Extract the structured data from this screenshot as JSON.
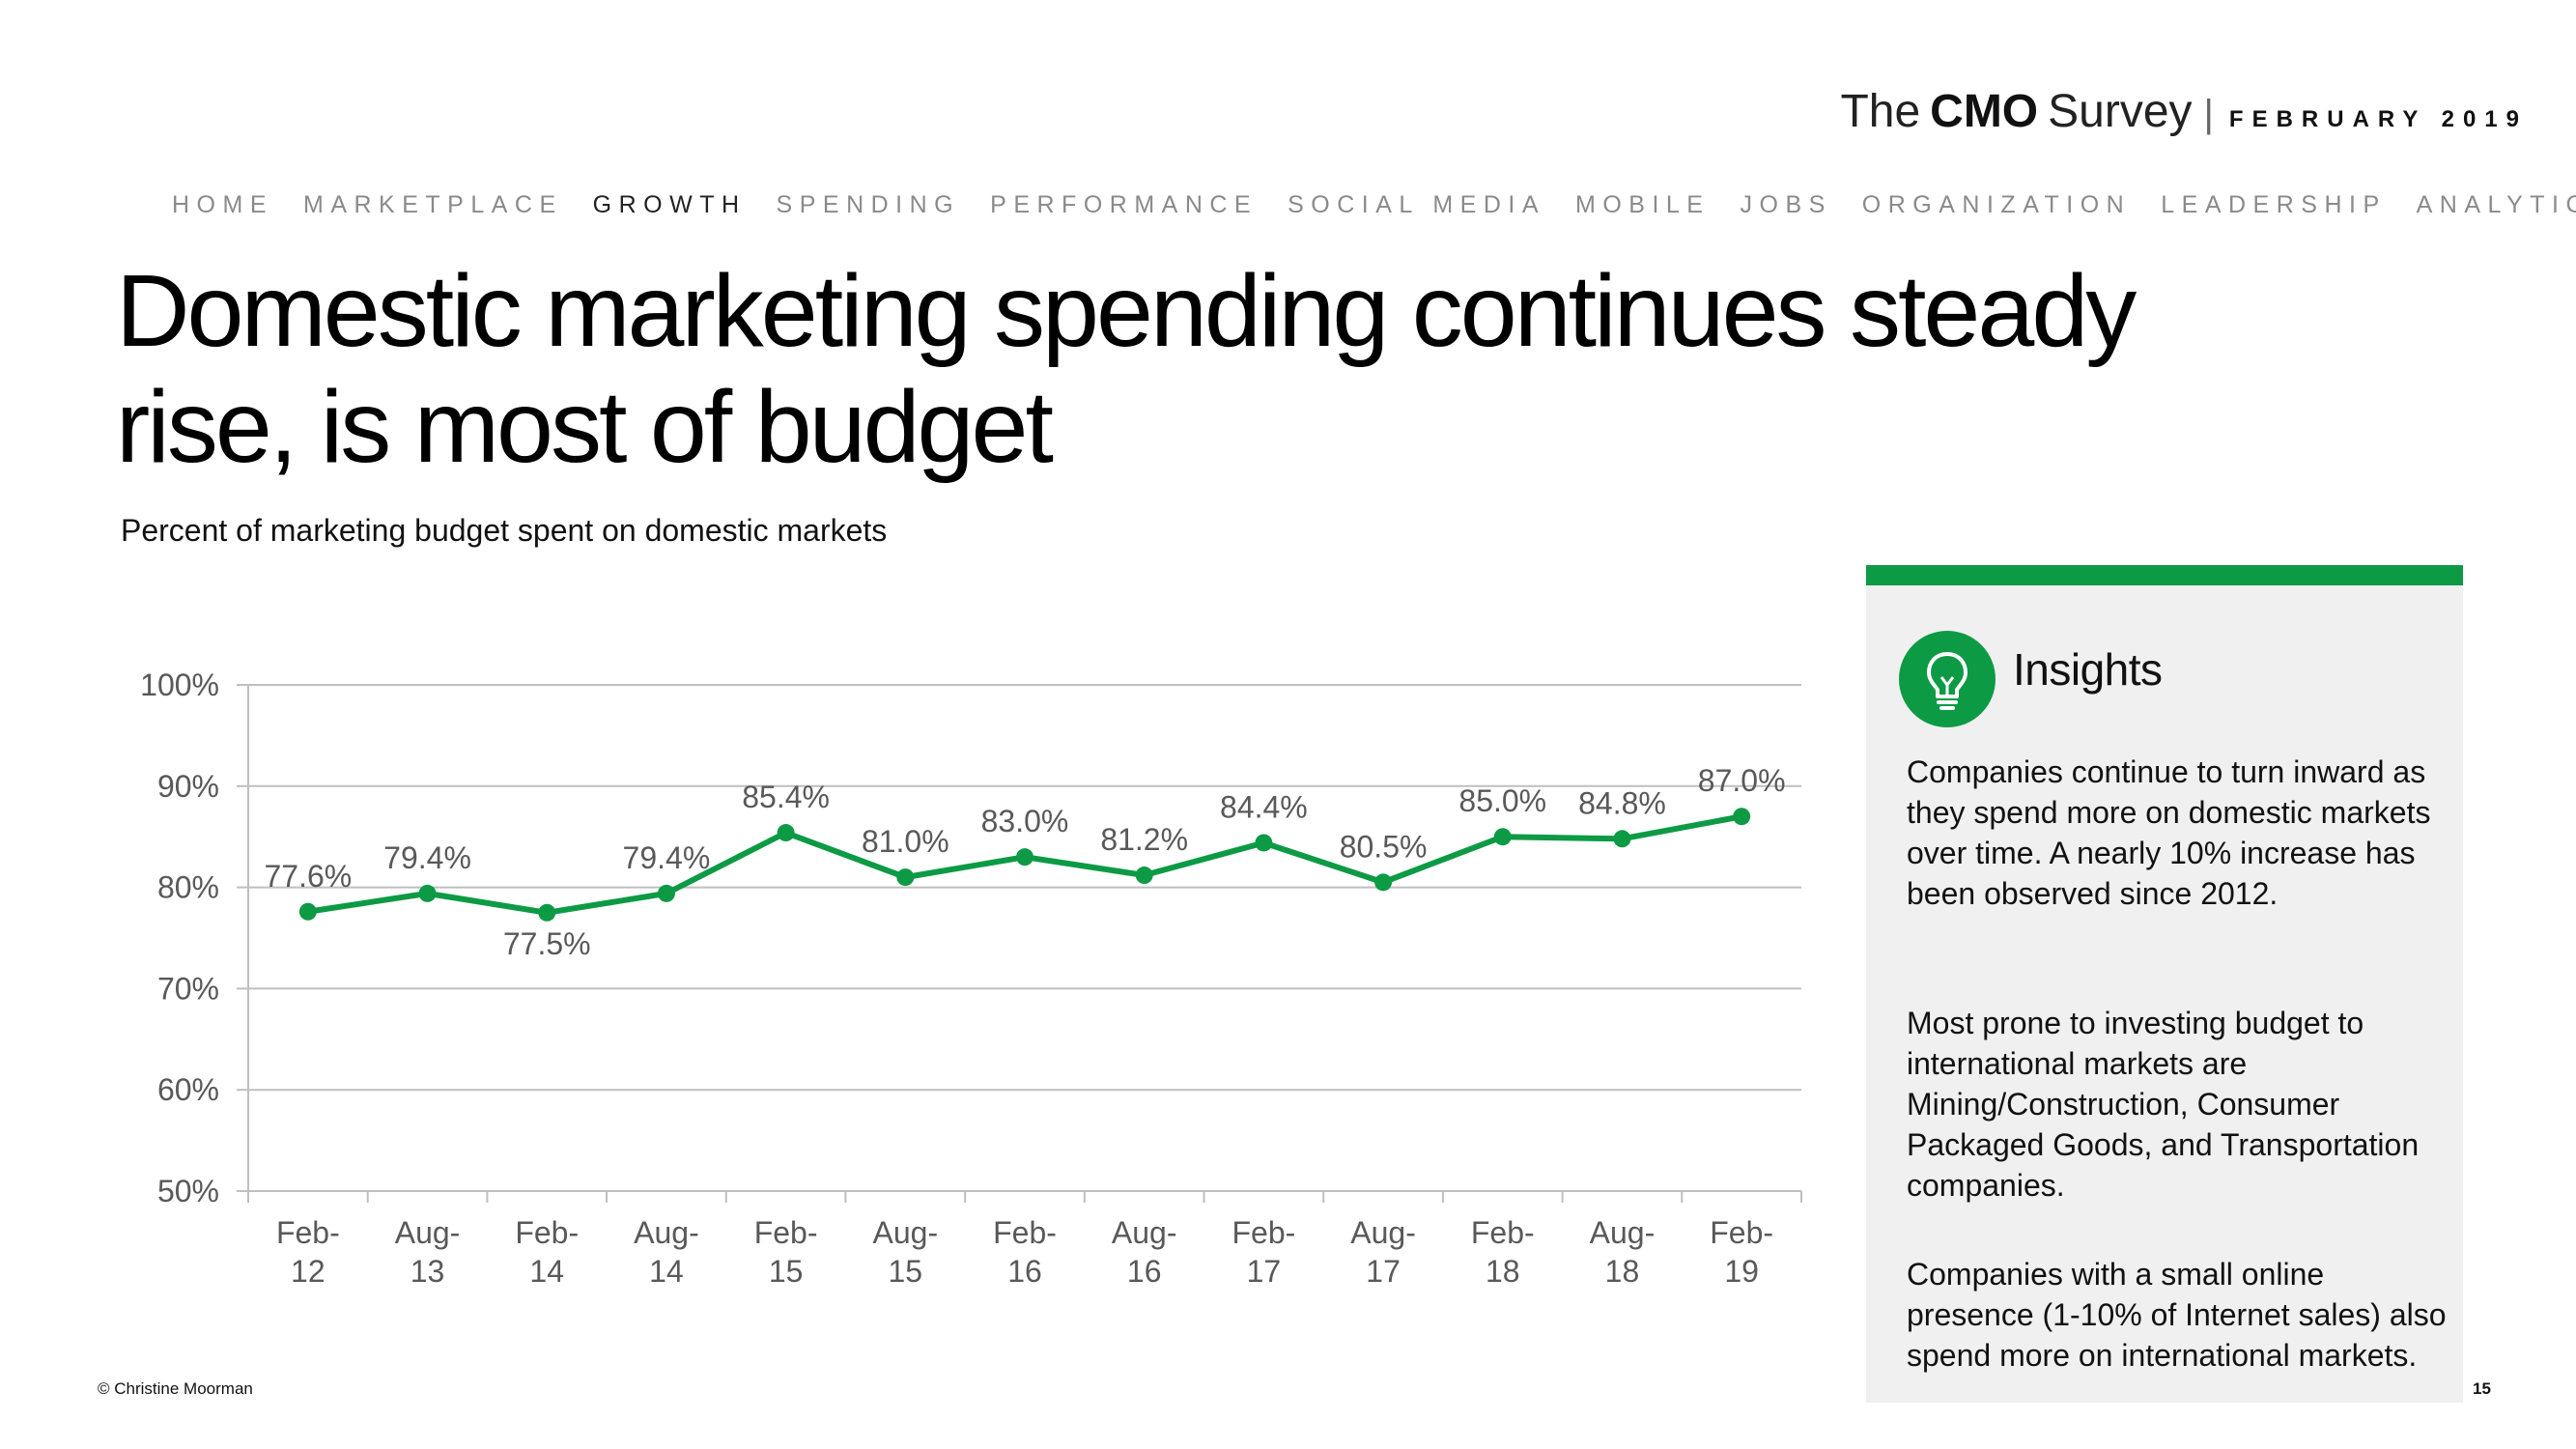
{
  "brand": {
    "the": "The",
    "cmo": "CMO",
    "survey": "Survey",
    "sep": "|",
    "date": "FEBRUARY 2019"
  },
  "nav": {
    "items": [
      "HOME",
      "MARKETPLACE",
      "GROWTH",
      "SPENDING",
      "PERFORMANCE",
      "SOCIAL MEDIA",
      "MOBILE",
      "JOBS",
      "ORGANIZATION",
      "LEADERSHIP",
      "ANALYTICS"
    ],
    "active": "GROWTH"
  },
  "title": "Domestic marketing spending continues steady rise, is most of budget",
  "subtitle": "Percent of marketing budget spent on domestic markets",
  "colors": {
    "accent": "#0d9a45",
    "panel": "#f0f0f0",
    "grid": "#bfbfbf",
    "tick_text": "#595959"
  },
  "chart_data": {
    "type": "line",
    "categories": [
      [
        "Feb-",
        "12"
      ],
      [
        "Aug-",
        "13"
      ],
      [
        "Feb-",
        "14"
      ],
      [
        "Aug-",
        "14"
      ],
      [
        "Feb-",
        "15"
      ],
      [
        "Aug-",
        "15"
      ],
      [
        "Feb-",
        "16"
      ],
      [
        "Aug-",
        "16"
      ],
      [
        "Feb-",
        "17"
      ],
      [
        "Aug-",
        "17"
      ],
      [
        "Feb-",
        "18"
      ],
      [
        "Aug-",
        "18"
      ],
      [
        "Feb-",
        "19"
      ]
    ],
    "values": [
      77.6,
      79.4,
      77.5,
      79.4,
      85.4,
      81.0,
      83.0,
      81.2,
      84.4,
      80.5,
      85.0,
      84.8,
      87.0
    ],
    "data_labels": [
      "77.6%",
      "79.4%",
      "77.5%",
      "79.4%",
      "85.4%",
      "81.0%",
      "83.0%",
      "81.2%",
      "84.4%",
      "80.5%",
      "85.0%",
      "84.8%",
      "87.0%"
    ],
    "label_position": [
      "above",
      "above",
      "below",
      "above",
      "above",
      "above",
      "above",
      "above",
      "above",
      "above",
      "above",
      "above",
      "above"
    ],
    "yticks": [
      50,
      60,
      70,
      80,
      90,
      100
    ],
    "ytick_labels": [
      "50%",
      "60%",
      "70%",
      "80%",
      "90%",
      "100%"
    ],
    "ylim": [
      50,
      100
    ],
    "grid": true,
    "legend": "none",
    "title": "",
    "xlabel": "",
    "ylabel": ""
  },
  "insights": {
    "icon": "lightbulb-icon",
    "title": "Insights",
    "paragraphs": [
      "Companies continue to turn inward as they spend more on domestic markets over time. A nearly 10% increase has been observed since 2012.",
      "Most prone to investing budget to international markets are Mining/Construction, Consumer Packaged Goods, and Transportation companies.",
      "Companies with a small online presence (1-10% of Internet sales) also spend more on international markets."
    ]
  },
  "footer": {
    "copyright": "© Christine Moorman",
    "page": "15"
  }
}
